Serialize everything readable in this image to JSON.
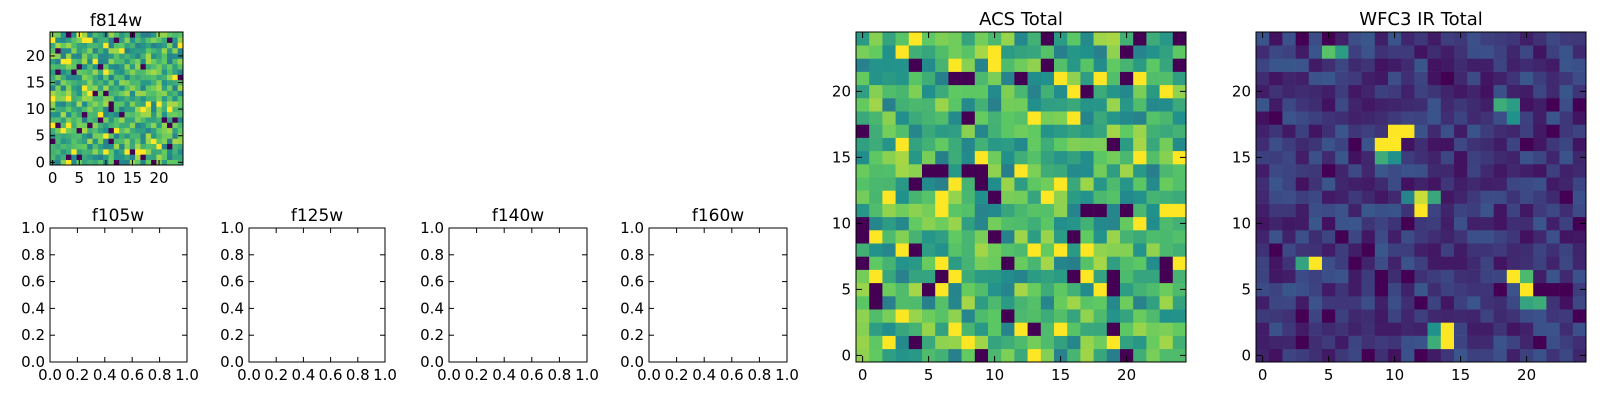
{
  "figure": {
    "background": "#ffffff",
    "colormap": [
      "#440154",
      "#3b528b",
      "#21918c",
      "#5ec962",
      "#fde725"
    ]
  },
  "chart_data": [
    {
      "id": "f814w",
      "type": "heatmap",
      "title": "f814w",
      "grid_size": 25,
      "xlim": [
        -0.5,
        24.5
      ],
      "ylim": [
        -0.5,
        24.5
      ],
      "xticks": [
        0,
        5,
        10,
        15,
        20
      ],
      "yticks": [
        0,
        5,
        10,
        15,
        20
      ],
      "noise": "uniform",
      "seed": 11
    },
    {
      "id": "f105w",
      "type": "heatmap",
      "title": "f105w",
      "empty": true,
      "xlim": [
        0,
        1
      ],
      "ylim": [
        0,
        1
      ],
      "xticks": [
        0.0,
        0.2,
        0.4,
        0.6,
        0.8,
        1.0
      ],
      "yticks": [
        0.0,
        0.2,
        0.4,
        0.6,
        0.8,
        1.0
      ]
    },
    {
      "id": "f125w",
      "type": "heatmap",
      "title": "f125w",
      "empty": true,
      "xlim": [
        0,
        1
      ],
      "ylim": [
        0,
        1
      ],
      "xticks": [
        0.0,
        0.2,
        0.4,
        0.6,
        0.8,
        1.0
      ],
      "yticks": [
        0.0,
        0.2,
        0.4,
        0.6,
        0.8,
        1.0
      ]
    },
    {
      "id": "f140w",
      "type": "heatmap",
      "title": "f140w",
      "empty": true,
      "xlim": [
        0,
        1
      ],
      "ylim": [
        0,
        1
      ],
      "xticks": [
        0.0,
        0.2,
        0.4,
        0.6,
        0.8,
        1.0
      ],
      "yticks": [
        0.0,
        0.2,
        0.4,
        0.6,
        0.8,
        1.0
      ]
    },
    {
      "id": "f160w",
      "type": "heatmap",
      "title": "f160w",
      "empty": true,
      "xlim": [
        0,
        1
      ],
      "ylim": [
        0,
        1
      ],
      "xticks": [
        0.0,
        0.2,
        0.4,
        0.6,
        0.8,
        1.0
      ],
      "yticks": [
        0.0,
        0.2,
        0.4,
        0.6,
        0.8,
        1.0
      ]
    },
    {
      "id": "acs-total",
      "type": "heatmap",
      "title": "ACS Total",
      "grid_size": 25,
      "xlim": [
        -0.5,
        24.5
      ],
      "ylim": [
        -0.5,
        24.5
      ],
      "xticks": [
        0,
        5,
        10,
        15,
        20
      ],
      "yticks": [
        0,
        5,
        10,
        15,
        20
      ],
      "noise": "uniform",
      "seed": 29
    },
    {
      "id": "wfc3-ir-total",
      "type": "heatmap",
      "title": "WFC3 IR Total",
      "grid_size": 25,
      "xlim": [
        -0.5,
        24.5
      ],
      "ylim": [
        -0.5,
        24.5
      ],
      "xticks": [
        0,
        5,
        10,
        15,
        20
      ],
      "yticks": [
        0,
        5,
        10,
        15,
        20
      ],
      "noise": "low",
      "seed": 47,
      "hot_pixels": [
        [
          5,
          23,
          0.72
        ],
        [
          6,
          23,
          0.55
        ],
        [
          10,
          17,
          1.0
        ],
        [
          11,
          17,
          1.0
        ],
        [
          9,
          16,
          1.0
        ],
        [
          10,
          16,
          1.0
        ],
        [
          9,
          15,
          0.62
        ],
        [
          10,
          15,
          0.5
        ],
        [
          18,
          19,
          0.62
        ],
        [
          19,
          19,
          0.55
        ],
        [
          19,
          18,
          0.5
        ],
        [
          12,
          12,
          0.92
        ],
        [
          12,
          11,
          1.0
        ],
        [
          13,
          12,
          0.6
        ],
        [
          11,
          12,
          0.45
        ],
        [
          3,
          7,
          0.58
        ],
        [
          4,
          7,
          1.0
        ],
        [
          19,
          6,
          1.0
        ],
        [
          20,
          6,
          0.68
        ],
        [
          20,
          5,
          1.0
        ],
        [
          20,
          4,
          0.58
        ],
        [
          21,
          4,
          0.62
        ],
        [
          14,
          2,
          1.0
        ],
        [
          13,
          1,
          0.62
        ],
        [
          14,
          1,
          1.0
        ],
        [
          13,
          2,
          0.5
        ]
      ]
    }
  ]
}
